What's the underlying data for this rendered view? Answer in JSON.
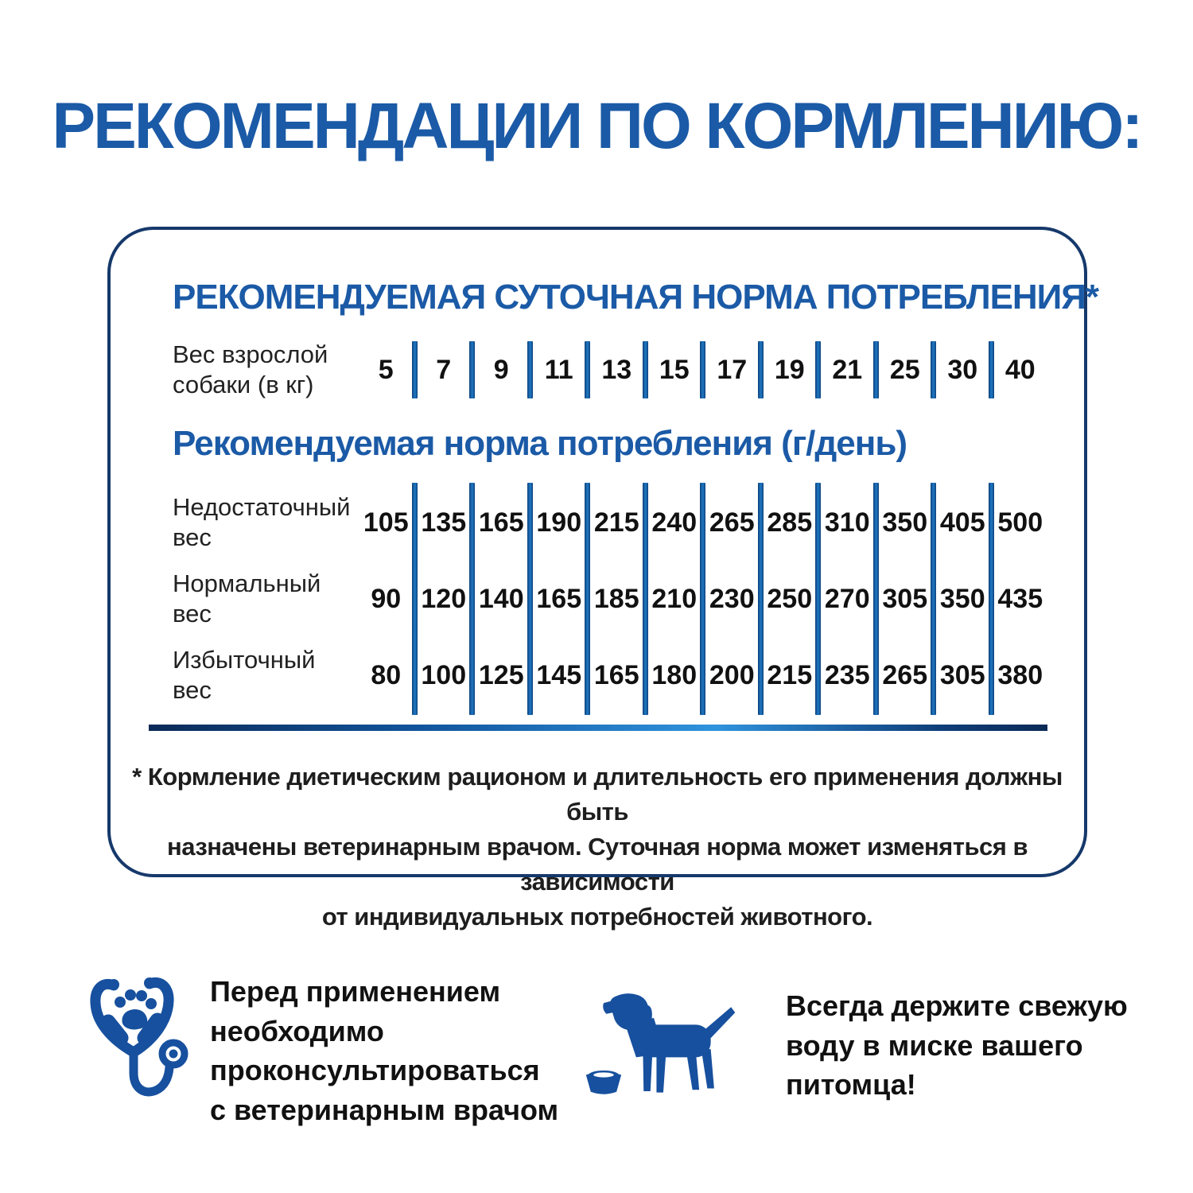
{
  "page": {
    "title": "РЕКОМЕНДАЦИИ ПО КОРМЛЕНИЮ:"
  },
  "panel": {
    "daily_title": "РЕКОМЕНДУЕМАЯ СУТОЧНАЯ НОРМА ПОТРЕБЛЕНИЯ*",
    "weight_label_lines": [
      "Вес взрослой",
      "собаки (в кг)"
    ],
    "weights_kg": [
      "5",
      "7",
      "9",
      "11",
      "13",
      "15",
      "17",
      "19",
      "21",
      "25",
      "30",
      "40"
    ],
    "intake_title": "Рекомендуемая норма потребления (г/день)",
    "rows": [
      {
        "label_lines": [
          "Недостаточный",
          "вес"
        ],
        "values": [
          "105",
          "135",
          "165",
          "190",
          "215",
          "240",
          "265",
          "285",
          "310",
          "350",
          "405",
          "500"
        ]
      },
      {
        "label_lines": [
          "Нормальный",
          "вес"
        ],
        "values": [
          "90",
          "120",
          "140",
          "165",
          "185",
          "210",
          "230",
          "250",
          "270",
          "305",
          "350",
          "435"
        ]
      },
      {
        "label_lines": [
          "Избыточный",
          "вес"
        ],
        "values": [
          "80",
          "100",
          "125",
          "145",
          "165",
          "180",
          "200",
          "215",
          "235",
          "265",
          "305",
          "380"
        ]
      }
    ],
    "footnote_lines": [
      "* Кормление диетическим рационом и длительность его применения должны быть",
      "назначены ветеринарным врачом. Суточная норма может изменяться в зависимости",
      "от индивидуальных потребностей животного."
    ]
  },
  "tips": [
    {
      "icon": "stethoscope-paw-icon",
      "lines": [
        "Перед применением",
        "необходимо",
        "проконсультироваться",
        "с ветеринарным врачом"
      ]
    },
    {
      "icon": "dog-with-bowl-icon",
      "lines": [
        "Всегда держите свежую",
        "воду в миске вашего",
        "питомца!"
      ]
    }
  ],
  "colors": {
    "accent_blue": "#1b5aa6",
    "border_navy": "#16396b",
    "icon_blue": "#17509e",
    "bar_blue": "#1e72bd",
    "text_dark": "#1d1d1d"
  }
}
